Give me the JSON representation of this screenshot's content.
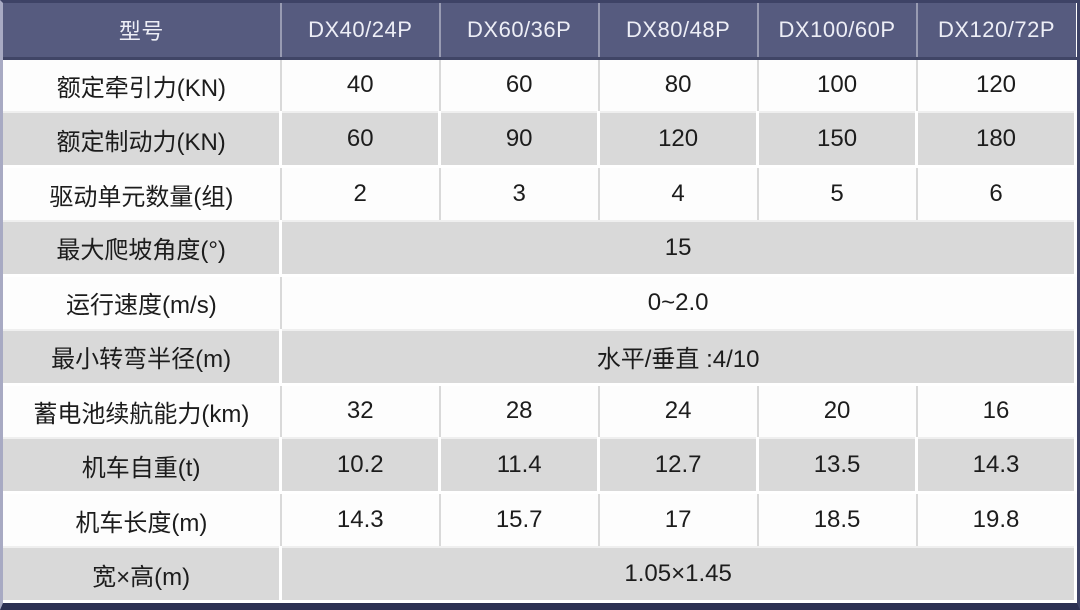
{
  "colors": {
    "header_bg": "#565b7f",
    "header_text": "#edeef6",
    "row_alt_bg": "#d9d9d9",
    "frame_top": "#3e4366",
    "frame_left": "#a8aac3",
    "frame_right": "#3e4366",
    "frame_bottom": "#2c3153"
  },
  "table": {
    "header": [
      "型号",
      "DX40/24P",
      "DX60/36P",
      "DX80/48P",
      "DX100/60P",
      "DX120/72P"
    ],
    "rows": [
      {
        "label": "额定牵引力(KN)",
        "merged": false,
        "values": [
          "40",
          "60",
          "80",
          "100",
          "120"
        ]
      },
      {
        "label": "额定制动力(KN)",
        "merged": false,
        "values": [
          "60",
          "90",
          "120",
          "150",
          "180"
        ]
      },
      {
        "label": "驱动单元数量(组)",
        "merged": false,
        "values": [
          "2",
          "3",
          "4",
          "5",
          "6"
        ]
      },
      {
        "label": "最大爬坡角度(°)",
        "merged": true,
        "merged_value": "15"
      },
      {
        "label": "运行速度(m/s)",
        "merged": true,
        "merged_value": "0~2.0"
      },
      {
        "label": "最小转弯半径(m)",
        "merged": true,
        "merged_value": "水平/垂直 :4/10"
      },
      {
        "label": "蓄电池续航能力(km)",
        "merged": false,
        "values": [
          "32",
          "28",
          "24",
          "20",
          "16"
        ]
      },
      {
        "label": "机车自重(t)",
        "merged": false,
        "values": [
          "10.2",
          "11.4",
          "12.7",
          "13.5",
          "14.3"
        ]
      },
      {
        "label": "机车长度(m)",
        "merged": false,
        "values": [
          "14.3",
          "15.7",
          "17",
          "18.5",
          "19.8"
        ]
      },
      {
        "label": "宽×高(m)",
        "merged": true,
        "merged_value": "1.05×1.45"
      }
    ]
  }
}
